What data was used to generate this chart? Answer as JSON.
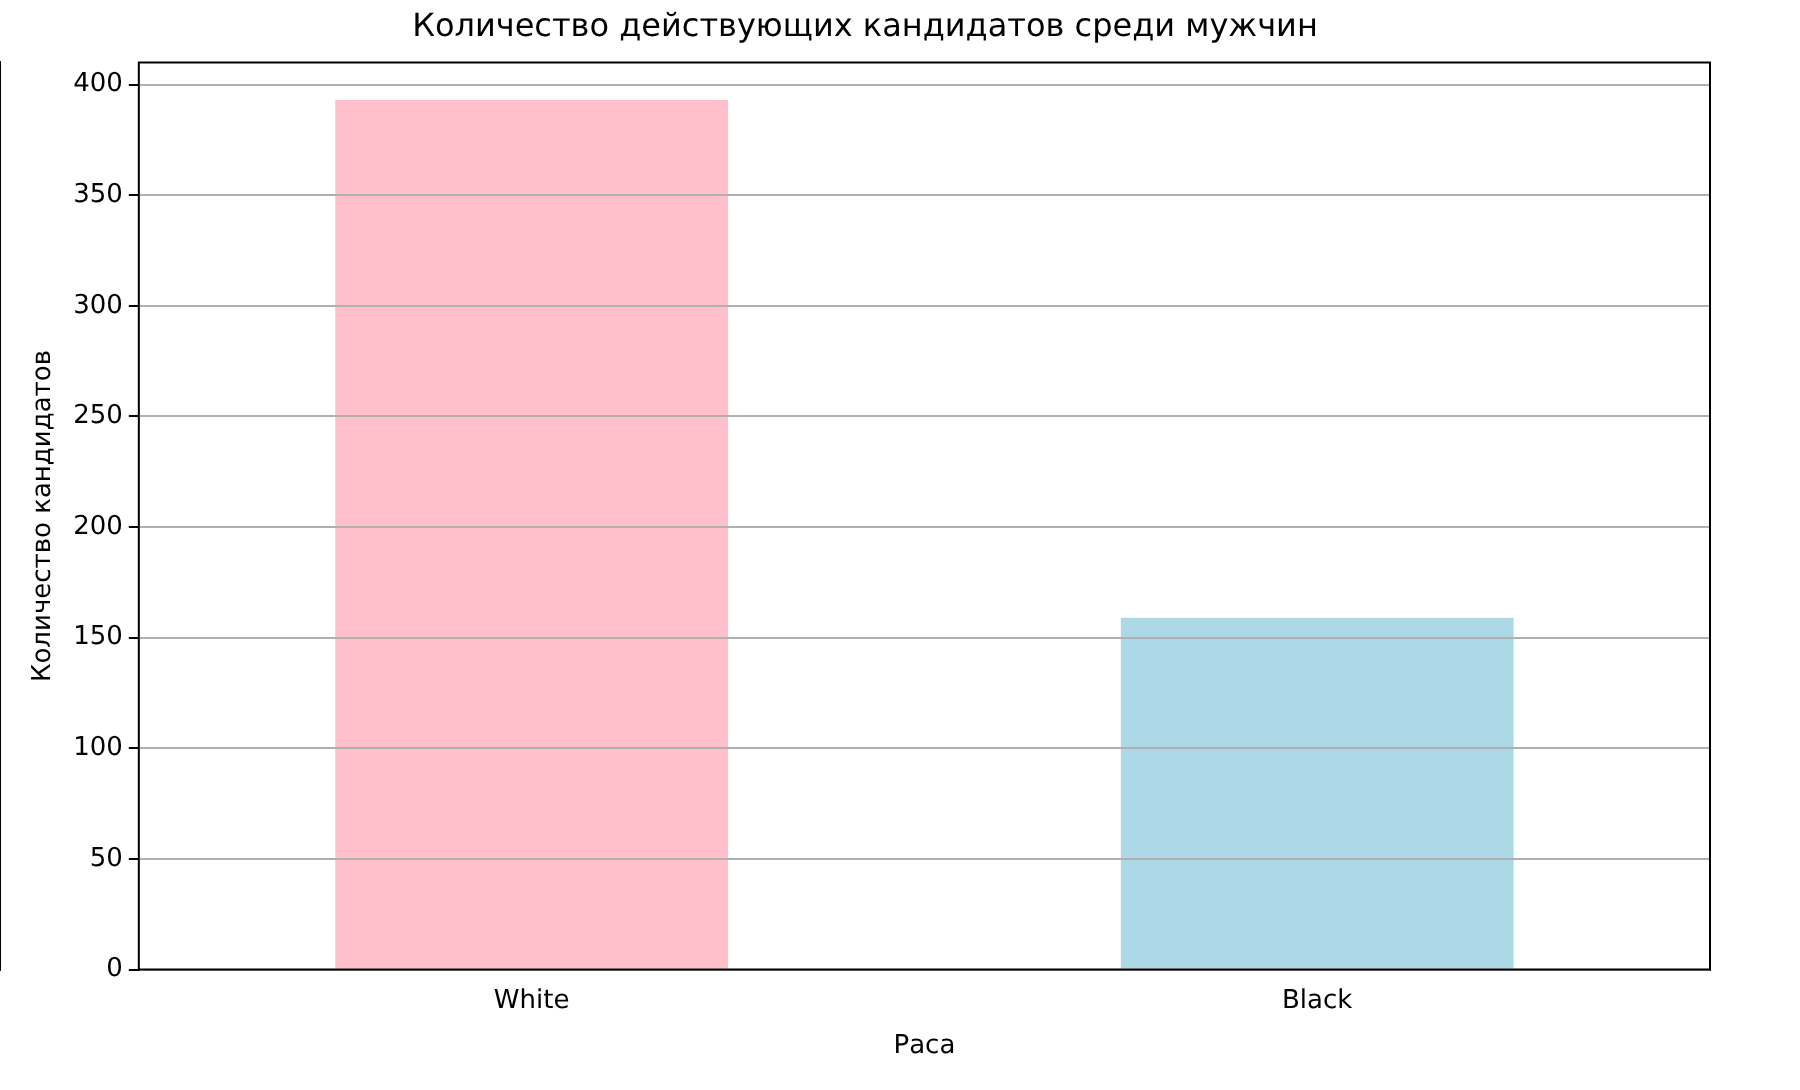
{
  "chart_data": {
    "type": "bar",
    "title": "Количество действующих кандидатов среди мужчин",
    "xlabel": "Раса",
    "ylabel": "Количество кандидатов",
    "categories": [
      "White",
      "Black"
    ],
    "values": [
      393,
      159
    ],
    "colors": [
      "#ffc0cb",
      "#add8e6"
    ],
    "ylim": [
      0,
      410
    ],
    "yticks": [
      0,
      50,
      100,
      150,
      200,
      250,
      300,
      350,
      400
    ],
    "grid": "y",
    "legend": false
  }
}
